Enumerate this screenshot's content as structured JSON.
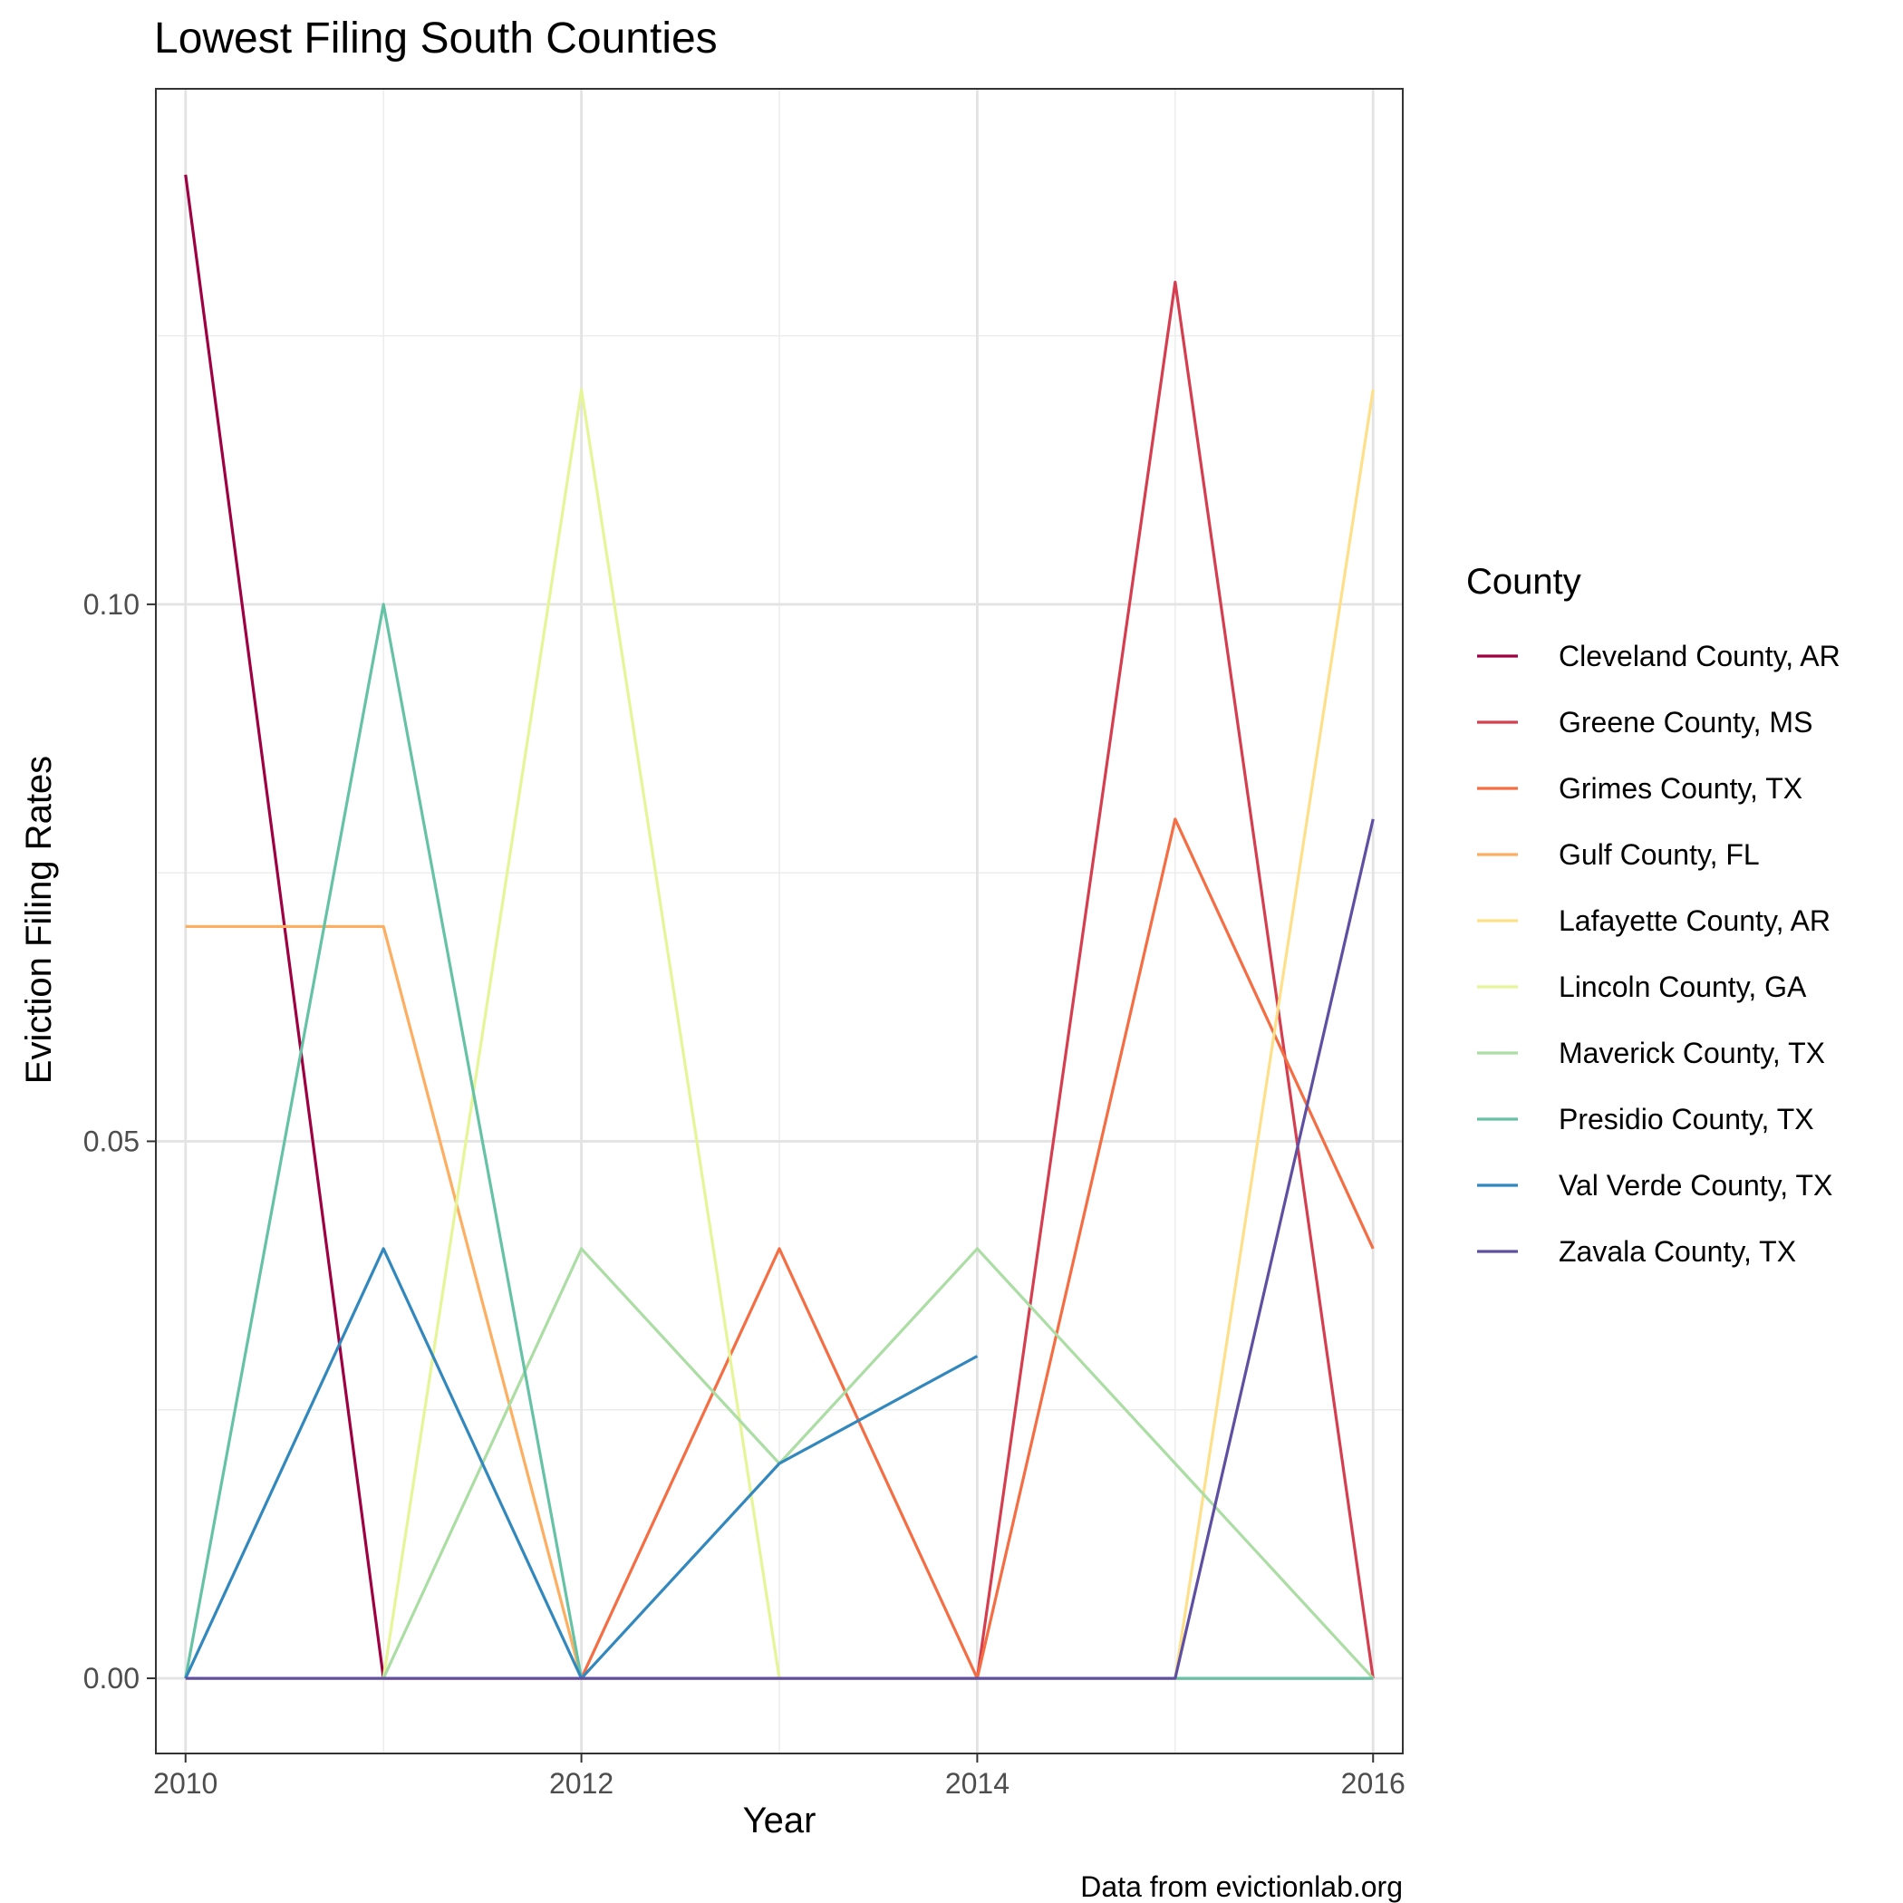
{
  "chart_data": {
    "type": "line",
    "title": "Lowest Filing South Counties",
    "xlabel": "Year",
    "ylabel": "Eviction Filing Rates",
    "caption": "Data from evictionlab.org",
    "x": [
      2010,
      2011,
      2012,
      2013,
      2014,
      2015,
      2016
    ],
    "xlim": [
      2009.85,
      2016.15
    ],
    "ylim": [
      -0.007,
      0.148
    ],
    "x_ticks": [
      2010,
      2012,
      2014,
      2016
    ],
    "x_tick_labels": [
      "2010",
      "2012",
      "2014",
      "2016"
    ],
    "y_ticks": [
      0.0,
      0.05,
      0.1
    ],
    "y_tick_labels": [
      "0.00",
      "0.05",
      "0.10"
    ],
    "grid": true,
    "legend_title": "County",
    "legend_position": "right",
    "series": [
      {
        "name": "Cleveland County, AR",
        "color": "#9e0142",
        "values": [
          0.14,
          0,
          0,
          0,
          0,
          0,
          0
        ]
      },
      {
        "name": "Greene County, MS",
        "color": "#d53e4f",
        "values": [
          0,
          0,
          0,
          0,
          0,
          0.13,
          0
        ]
      },
      {
        "name": "Grimes County, TX",
        "color": "#f46d43",
        "values": [
          0,
          0,
          0,
          0.04,
          0,
          0.08,
          0.04
        ]
      },
      {
        "name": "Gulf County, FL",
        "color": "#fdae61",
        "values": [
          0.07,
          0.07,
          0,
          0,
          0,
          0,
          0
        ]
      },
      {
        "name": "Lafayette County, AR",
        "color": "#fee08b",
        "values": [
          0,
          0,
          0,
          0,
          0,
          0,
          0.12
        ]
      },
      {
        "name": "Lincoln County, GA",
        "color": "#e6f598",
        "values": [
          0,
          0,
          0.12,
          0,
          null,
          null,
          null
        ]
      },
      {
        "name": "Maverick County, TX",
        "color": "#abdda4",
        "values": [
          0,
          0,
          0.04,
          0.02,
          0.04,
          0.02,
          0
        ]
      },
      {
        "name": "Presidio County, TX",
        "color": "#66c2a5",
        "values": [
          0,
          0.1,
          0,
          0,
          0,
          0,
          0
        ]
      },
      {
        "name": "Val Verde County, TX",
        "color": "#3288bd",
        "values": [
          0,
          0.04,
          0,
          0.02,
          0.03,
          null,
          null
        ]
      },
      {
        "name": "Zavala County, TX",
        "color": "#5e4fa2",
        "values": [
          0,
          0,
          0,
          0,
          0,
          0,
          0.08
        ]
      }
    ]
  }
}
